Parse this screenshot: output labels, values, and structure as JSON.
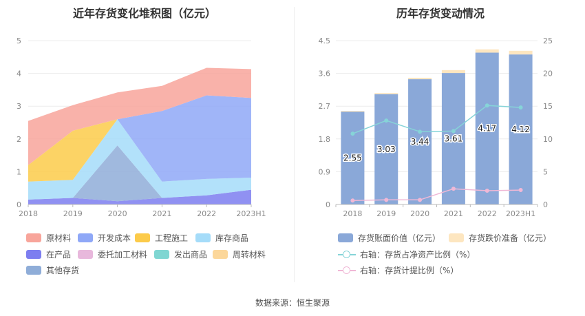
{
  "left_chart": {
    "title": "近年存货变化堆积图（亿元）",
    "legend": [
      {
        "name": "原材料",
        "color": "#f8a59b"
      },
      {
        "name": "开发成本",
        "color": "#8fa8f7"
      },
      {
        "name": "工程施工",
        "color": "#fccb4a"
      },
      {
        "name": "库存商品",
        "color": "#a5dcf9"
      },
      {
        "name": "在产品",
        "color": "#7d7ef0"
      },
      {
        "name": "委托加工材料",
        "color": "#e8b8dc"
      },
      {
        "name": "发出商品",
        "color": "#7fd6d2"
      },
      {
        "name": "周转材料",
        "color": "#fcd79a"
      },
      {
        "name": "其他存货",
        "color": "#8fadd8"
      }
    ]
  },
  "right_chart": {
    "title": "历年存货变动情况",
    "legend": [
      {
        "name": "存货账面价值（亿元）",
        "color": "#8aa8d8"
      },
      {
        "name": "存货跌价准备（亿元）",
        "color": "#fde6c0"
      },
      {
        "name": "右轴：存货占净资产比例（%）",
        "color": "#86d4d8"
      },
      {
        "name": "右轴：存货计提比例（%）",
        "color": "#f0b8d6"
      }
    ]
  },
  "chart_data": [
    {
      "type": "area",
      "stacked": true,
      "title": "近年存货变化堆积图（亿元）",
      "categories": [
        "2018",
        "2019",
        "2020",
        "2021",
        "2022",
        "2023H1"
      ],
      "ylim": [
        0,
        5
      ],
      "yticks": [
        "0",
        "1",
        "2",
        "3",
        "4",
        "5"
      ],
      "series": [
        {
          "name": "在产品",
          "color": "#7d7ef0",
          "values": [
            0.15,
            0.2,
            0.1,
            0.2,
            0.28,
            0.45
          ]
        },
        {
          "name": "委托加工材料",
          "color": "#e8b8dc",
          "values": [
            0,
            0,
            0,
            0,
            0,
            0
          ]
        },
        {
          "name": "发出商品",
          "color": "#7fd6d2",
          "values": [
            0,
            0,
            0,
            0,
            0,
            0
          ]
        },
        {
          "name": "周转材料",
          "color": "#fcd79a",
          "values": [
            0,
            0,
            0,
            0,
            0,
            0
          ]
        },
        {
          "name": "其他存货",
          "color": "#8fadd8",
          "values": [
            0,
            0,
            1.7,
            0,
            0,
            0
          ]
        },
        {
          "name": "库存商品",
          "color": "#a5dcf9",
          "values": [
            0.55,
            0.55,
            0.8,
            0.5,
            0.5,
            0.37
          ]
        },
        {
          "name": "工程施工",
          "color": "#fccb4a",
          "values": [
            0.5,
            1.5,
            0,
            0,
            0,
            0
          ]
        },
        {
          "name": "开发成本",
          "color": "#8fa8f7",
          "values": [
            0,
            0,
            0,
            2.15,
            2.55,
            2.43
          ]
        },
        {
          "name": "原材料",
          "color": "#f8a59b",
          "values": [
            1.35,
            0.78,
            0.82,
            0.77,
            0.84,
            0.88
          ]
        }
      ]
    },
    {
      "type": "bar",
      "title": "历年存货变动情况",
      "categories": [
        "2018",
        "2019",
        "2020",
        "2021",
        "2022",
        "2023H1"
      ],
      "ylim": [
        0,
        4.5
      ],
      "yticks": [
        "0",
        "0.9",
        "1.8",
        "2.7",
        "3.6",
        "4.5"
      ],
      "y2lim": [
        0,
        25
      ],
      "y2ticks": [
        "0",
        "5",
        "10",
        "15",
        "20",
        "25"
      ],
      "series": [
        {
          "name": "存货账面价值（亿元）",
          "color": "#8aa8d8",
          "values": [
            2.55,
            3.03,
            3.44,
            3.61,
            4.17,
            4.12
          ],
          "labels": [
            "2.55",
            "3.03",
            "3.44",
            "3.61",
            "4.17",
            "4.12"
          ]
        },
        {
          "name": "存货跌价准备（亿元）",
          "color": "#fde6c0",
          "values": [
            0.02,
            0.03,
            0.04,
            0.08,
            0.09,
            0.1
          ]
        },
        {
          "name": "右轴：存货占净资产比例（%）",
          "color": "#86d4d8",
          "axis": "right",
          "values": [
            10.8,
            12.8,
            11.1,
            11.2,
            15.1,
            14.8
          ]
        },
        {
          "name": "右轴：存货计提比例（%）",
          "color": "#f0b8d6",
          "axis": "right",
          "values": [
            0.6,
            0.7,
            0.7,
            2.4,
            2.1,
            2.2
          ]
        }
      ]
    }
  ],
  "footer": {
    "source": "数据来源：恒生聚源"
  }
}
